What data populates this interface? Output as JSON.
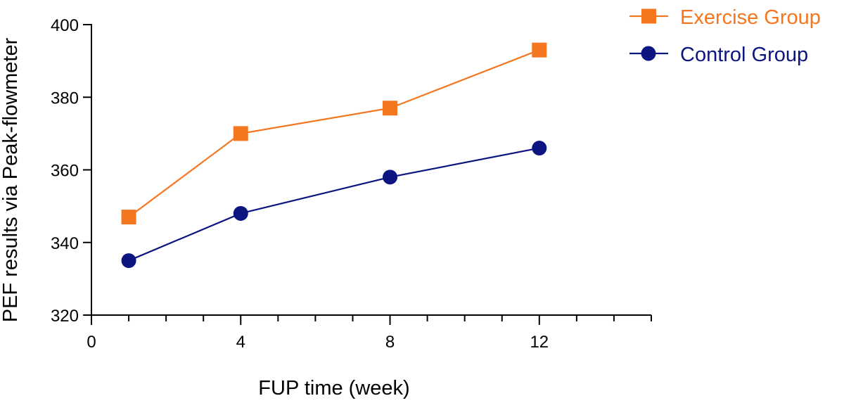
{
  "chart_data": {
    "type": "line",
    "title": "",
    "xlabel": "FUP time (week)",
    "ylabel": "PEF results via Peak-flowmeter",
    "xlim": [
      0,
      15
    ],
    "ylim": [
      320,
      400
    ],
    "x_ticks": [
      0,
      4,
      8,
      12
    ],
    "x_minor_step": 1,
    "y_ticks": [
      320,
      340,
      360,
      380,
      400
    ],
    "grid": false,
    "legend": "top-right",
    "series": [
      {
        "name": "Exercise Group",
        "marker": "square",
        "color": "#f4761f",
        "x": [
          1,
          4,
          8,
          12
        ],
        "values": [
          347,
          370,
          377,
          393
        ]
      },
      {
        "name": "Control Group",
        "marker": "circle",
        "color": "#0c1580",
        "x": [
          1,
          4,
          8,
          12
        ],
        "values": [
          335,
          348,
          358,
          366
        ]
      }
    ]
  }
}
